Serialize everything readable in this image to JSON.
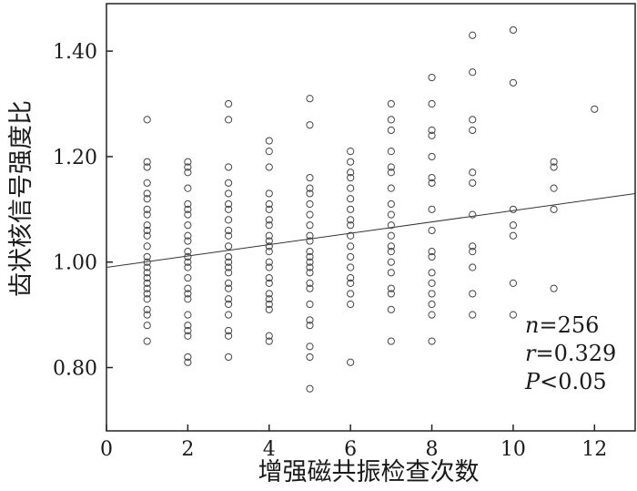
{
  "chart_data": {
    "type": "scatter",
    "xlabel": "增强磁共振检查次数",
    "ylabel": "齿状核信号强度比",
    "xlim": [
      0,
      13
    ],
    "ylim": [
      0.68,
      1.49
    ],
    "xticks": [
      "0",
      "2",
      "4",
      "6",
      "8",
      "10",
      "12"
    ],
    "yticks": [
      "0.80",
      "1.00",
      "1.20",
      "1.40"
    ],
    "grid": false,
    "regression_line": {
      "x_from": 0,
      "x_to": 13,
      "y_from": 0.99,
      "y_to": 1.13
    },
    "stats": {
      "n": {
        "var": "n",
        "text": "=256"
      },
      "r": {
        "var": "r",
        "text": "=0.329"
      },
      "p": {
        "var": "P",
        "text": "<0.05"
      }
    },
    "points": [
      {
        "x": 1,
        "y": 1.27
      },
      {
        "x": 1,
        "y": 1.19
      },
      {
        "x": 1,
        "y": 1.18
      },
      {
        "x": 1,
        "y": 1.15
      },
      {
        "x": 1,
        "y": 1.13
      },
      {
        "x": 1,
        "y": 1.12
      },
      {
        "x": 1,
        "y": 1.1
      },
      {
        "x": 1,
        "y": 1.09
      },
      {
        "x": 1,
        "y": 1.07
      },
      {
        "x": 1,
        "y": 1.06
      },
      {
        "x": 1,
        "y": 1.05
      },
      {
        "x": 1,
        "y": 1.03
      },
      {
        "x": 1,
        "y": 1.01
      },
      {
        "x": 1,
        "y": 1.0
      },
      {
        "x": 1,
        "y": 0.99
      },
      {
        "x": 1,
        "y": 0.98
      },
      {
        "x": 1,
        "y": 0.97
      },
      {
        "x": 1,
        "y": 0.96
      },
      {
        "x": 1,
        "y": 0.95
      },
      {
        "x": 1,
        "y": 0.94
      },
      {
        "x": 1,
        "y": 0.93
      },
      {
        "x": 1,
        "y": 0.91
      },
      {
        "x": 1,
        "y": 0.9
      },
      {
        "x": 1,
        "y": 0.88
      },
      {
        "x": 1,
        "y": 0.85
      },
      {
        "x": 2,
        "y": 1.19
      },
      {
        "x": 2,
        "y": 1.18
      },
      {
        "x": 2,
        "y": 1.17
      },
      {
        "x": 2,
        "y": 1.14
      },
      {
        "x": 2,
        "y": 1.11
      },
      {
        "x": 2,
        "y": 1.1
      },
      {
        "x": 2,
        "y": 1.09
      },
      {
        "x": 2,
        "y": 1.07
      },
      {
        "x": 2,
        "y": 1.05
      },
      {
        "x": 2,
        "y": 1.04
      },
      {
        "x": 2,
        "y": 1.02
      },
      {
        "x": 2,
        "y": 1.01
      },
      {
        "x": 2,
        "y": 1.0
      },
      {
        "x": 2,
        "y": 0.99
      },
      {
        "x": 2,
        "y": 0.97
      },
      {
        "x": 2,
        "y": 0.95
      },
      {
        "x": 2,
        "y": 0.94
      },
      {
        "x": 2,
        "y": 0.93
      },
      {
        "x": 2,
        "y": 0.9
      },
      {
        "x": 2,
        "y": 0.88
      },
      {
        "x": 2,
        "y": 0.87
      },
      {
        "x": 2,
        "y": 0.86
      },
      {
        "x": 2,
        "y": 0.82
      },
      {
        "x": 2,
        "y": 0.81
      },
      {
        "x": 3,
        "y": 1.3
      },
      {
        "x": 3,
        "y": 1.27
      },
      {
        "x": 3,
        "y": 1.18
      },
      {
        "x": 3,
        "y": 1.15
      },
      {
        "x": 3,
        "y": 1.13
      },
      {
        "x": 3,
        "y": 1.11
      },
      {
        "x": 3,
        "y": 1.1
      },
      {
        "x": 3,
        "y": 1.08
      },
      {
        "x": 3,
        "y": 1.06
      },
      {
        "x": 3,
        "y": 1.05
      },
      {
        "x": 3,
        "y": 1.03
      },
      {
        "x": 3,
        "y": 1.01
      },
      {
        "x": 3,
        "y": 1.0
      },
      {
        "x": 3,
        "y": 0.99
      },
      {
        "x": 3,
        "y": 0.98
      },
      {
        "x": 3,
        "y": 0.96
      },
      {
        "x": 3,
        "y": 0.95
      },
      {
        "x": 3,
        "y": 0.93
      },
      {
        "x": 3,
        "y": 0.92
      },
      {
        "x": 3,
        "y": 0.9
      },
      {
        "x": 3,
        "y": 0.87
      },
      {
        "x": 3,
        "y": 0.86
      },
      {
        "x": 3,
        "y": 0.82
      },
      {
        "x": 4,
        "y": 1.23
      },
      {
        "x": 4,
        "y": 1.21
      },
      {
        "x": 4,
        "y": 1.18
      },
      {
        "x": 4,
        "y": 1.13
      },
      {
        "x": 4,
        "y": 1.11
      },
      {
        "x": 4,
        "y": 1.1
      },
      {
        "x": 4,
        "y": 1.08
      },
      {
        "x": 4,
        "y": 1.07
      },
      {
        "x": 4,
        "y": 1.05
      },
      {
        "x": 4,
        "y": 1.04
      },
      {
        "x": 4,
        "y": 1.03
      },
      {
        "x": 4,
        "y": 1.02
      },
      {
        "x": 4,
        "y": 1.0
      },
      {
        "x": 4,
        "y": 0.99
      },
      {
        "x": 4,
        "y": 0.97
      },
      {
        "x": 4,
        "y": 0.96
      },
      {
        "x": 4,
        "y": 0.94
      },
      {
        "x": 4,
        "y": 0.93
      },
      {
        "x": 4,
        "y": 0.92
      },
      {
        "x": 4,
        "y": 0.91
      },
      {
        "x": 4,
        "y": 0.86
      },
      {
        "x": 4,
        "y": 0.85
      },
      {
        "x": 5,
        "y": 1.31
      },
      {
        "x": 5,
        "y": 1.26
      },
      {
        "x": 5,
        "y": 1.16
      },
      {
        "x": 5,
        "y": 1.14
      },
      {
        "x": 5,
        "y": 1.13
      },
      {
        "x": 5,
        "y": 1.11
      },
      {
        "x": 5,
        "y": 1.09
      },
      {
        "x": 5,
        "y": 1.07
      },
      {
        "x": 5,
        "y": 1.05
      },
      {
        "x": 5,
        "y": 1.04
      },
      {
        "x": 5,
        "y": 1.02
      },
      {
        "x": 5,
        "y": 1.01
      },
      {
        "x": 5,
        "y": 1.0
      },
      {
        "x": 5,
        "y": 0.99
      },
      {
        "x": 5,
        "y": 0.98
      },
      {
        "x": 5,
        "y": 0.96
      },
      {
        "x": 5,
        "y": 0.95
      },
      {
        "x": 5,
        "y": 0.92
      },
      {
        "x": 5,
        "y": 0.89
      },
      {
        "x": 5,
        "y": 0.88
      },
      {
        "x": 5,
        "y": 0.84
      },
      {
        "x": 5,
        "y": 0.82
      },
      {
        "x": 5,
        "y": 0.76
      },
      {
        "x": 6,
        "y": 1.21
      },
      {
        "x": 6,
        "y": 1.19
      },
      {
        "x": 6,
        "y": 1.17
      },
      {
        "x": 6,
        "y": 1.16
      },
      {
        "x": 6,
        "y": 1.14
      },
      {
        "x": 6,
        "y": 1.12
      },
      {
        "x": 6,
        "y": 1.1
      },
      {
        "x": 6,
        "y": 1.08
      },
      {
        "x": 6,
        "y": 1.07
      },
      {
        "x": 6,
        "y": 1.05
      },
      {
        "x": 6,
        "y": 1.03
      },
      {
        "x": 6,
        "y": 1.01
      },
      {
        "x": 6,
        "y": 0.99
      },
      {
        "x": 6,
        "y": 0.97
      },
      {
        "x": 6,
        "y": 0.96
      },
      {
        "x": 6,
        "y": 0.94
      },
      {
        "x": 6,
        "y": 0.92
      },
      {
        "x": 6,
        "y": 0.81
      },
      {
        "x": 7,
        "y": 1.3
      },
      {
        "x": 7,
        "y": 1.27
      },
      {
        "x": 7,
        "y": 1.25
      },
      {
        "x": 7,
        "y": 1.21
      },
      {
        "x": 7,
        "y": 1.18
      },
      {
        "x": 7,
        "y": 1.17
      },
      {
        "x": 7,
        "y": 1.14
      },
      {
        "x": 7,
        "y": 1.11
      },
      {
        "x": 7,
        "y": 1.09
      },
      {
        "x": 7,
        "y": 1.07
      },
      {
        "x": 7,
        "y": 1.05
      },
      {
        "x": 7,
        "y": 1.03
      },
      {
        "x": 7,
        "y": 1.02
      },
      {
        "x": 7,
        "y": 1.0
      },
      {
        "x": 7,
        "y": 0.98
      },
      {
        "x": 7,
        "y": 0.95
      },
      {
        "x": 7,
        "y": 0.94
      },
      {
        "x": 7,
        "y": 0.91
      },
      {
        "x": 7,
        "y": 0.85
      },
      {
        "x": 8,
        "y": 1.35
      },
      {
        "x": 8,
        "y": 1.3
      },
      {
        "x": 8,
        "y": 1.25
      },
      {
        "x": 8,
        "y": 1.24
      },
      {
        "x": 8,
        "y": 1.2
      },
      {
        "x": 8,
        "y": 1.16
      },
      {
        "x": 8,
        "y": 1.15
      },
      {
        "x": 8,
        "y": 1.1
      },
      {
        "x": 8,
        "y": 1.06
      },
      {
        "x": 8,
        "y": 1.02
      },
      {
        "x": 8,
        "y": 1.01
      },
      {
        "x": 8,
        "y": 0.98
      },
      {
        "x": 8,
        "y": 0.96
      },
      {
        "x": 8,
        "y": 0.94
      },
      {
        "x": 8,
        "y": 0.92
      },
      {
        "x": 8,
        "y": 0.9
      },
      {
        "x": 8,
        "y": 0.85
      },
      {
        "x": 9,
        "y": 1.43
      },
      {
        "x": 9,
        "y": 1.36
      },
      {
        "x": 9,
        "y": 1.27
      },
      {
        "x": 9,
        "y": 1.25
      },
      {
        "x": 9,
        "y": 1.17
      },
      {
        "x": 9,
        "y": 1.15
      },
      {
        "x": 9,
        "y": 1.09
      },
      {
        "x": 9,
        "y": 1.03
      },
      {
        "x": 9,
        "y": 1.02
      },
      {
        "x": 9,
        "y": 0.99
      },
      {
        "x": 9,
        "y": 0.94
      },
      {
        "x": 9,
        "y": 0.9
      },
      {
        "x": 10,
        "y": 1.44
      },
      {
        "x": 10,
        "y": 1.34
      },
      {
        "x": 10,
        "y": 1.1
      },
      {
        "x": 10,
        "y": 1.07
      },
      {
        "x": 10,
        "y": 1.05
      },
      {
        "x": 10,
        "y": 0.96
      },
      {
        "x": 10,
        "y": 0.9
      },
      {
        "x": 11,
        "y": 1.19
      },
      {
        "x": 11,
        "y": 1.18
      },
      {
        "x": 11,
        "y": 1.14
      },
      {
        "x": 11,
        "y": 1.1
      },
      {
        "x": 11,
        "y": 0.95
      },
      {
        "x": 12,
        "y": 1.29
      }
    ]
  }
}
